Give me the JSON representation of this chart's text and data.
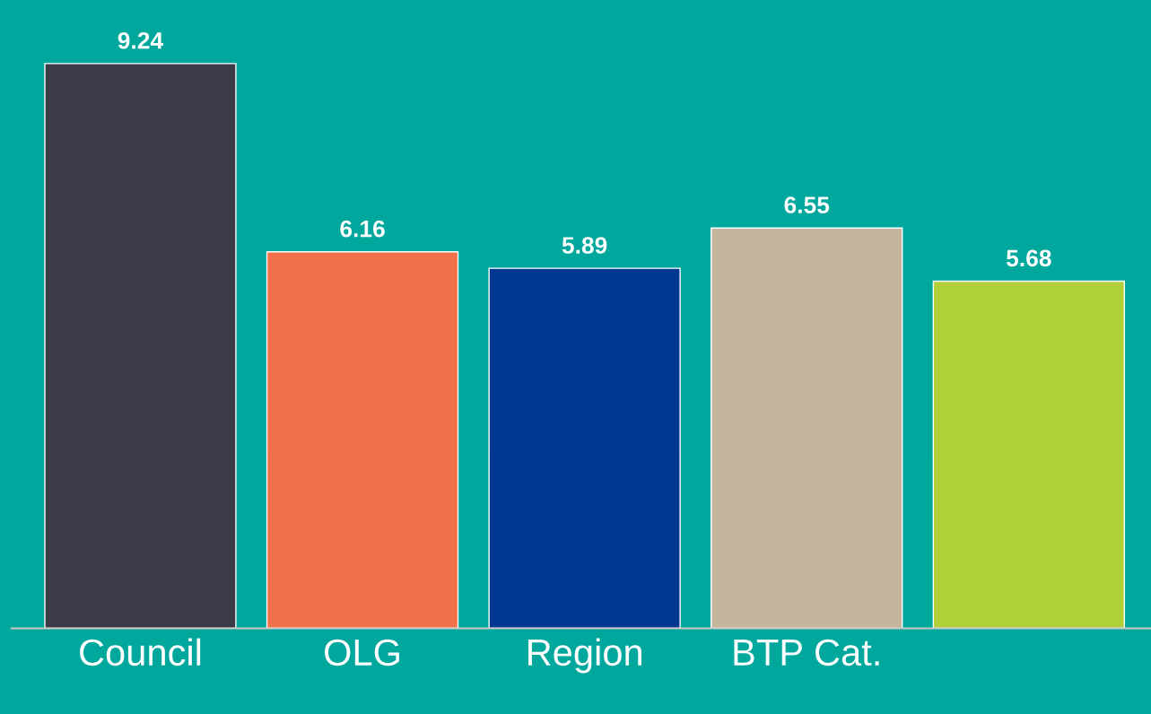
{
  "chart_data": {
    "type": "bar",
    "categories": [
      "Council",
      "OLG",
      "Region",
      "BTP Cat.",
      null
    ],
    "values": [
      9.24,
      6.16,
      5.89,
      6.55,
      5.68
    ],
    "colors": [
      "#3b3a46",
      "#f0714a",
      "#003790",
      "#c4b59c",
      "#b0d03a"
    ],
    "data_labels": true,
    "grid": false,
    "legend": false
  }
}
